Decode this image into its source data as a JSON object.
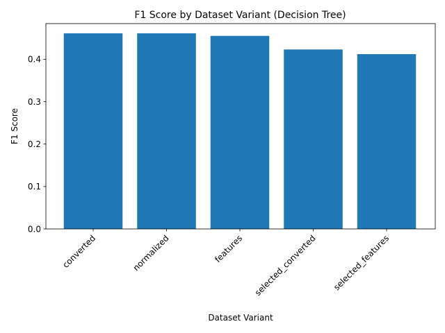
{
  "chart_data": {
    "type": "bar",
    "title": "F1 Score by Dataset Variant (Decision Tree)",
    "xlabel": "Dataset Variant",
    "ylabel": "F1 Score",
    "categories": [
      "converted",
      "normalized",
      "features",
      "selected_converted",
      "selected_features"
    ],
    "values": [
      0.461,
      0.461,
      0.455,
      0.423,
      0.412
    ],
    "ylim": [
      0,
      0.484
    ],
    "yticks": [
      "0.0",
      "0.1",
      "0.2",
      "0.3",
      "0.4"
    ],
    "bar_color": "#1f77b4",
    "x_tick_rotation_deg": 45,
    "grid": false,
    "legend": "none"
  }
}
